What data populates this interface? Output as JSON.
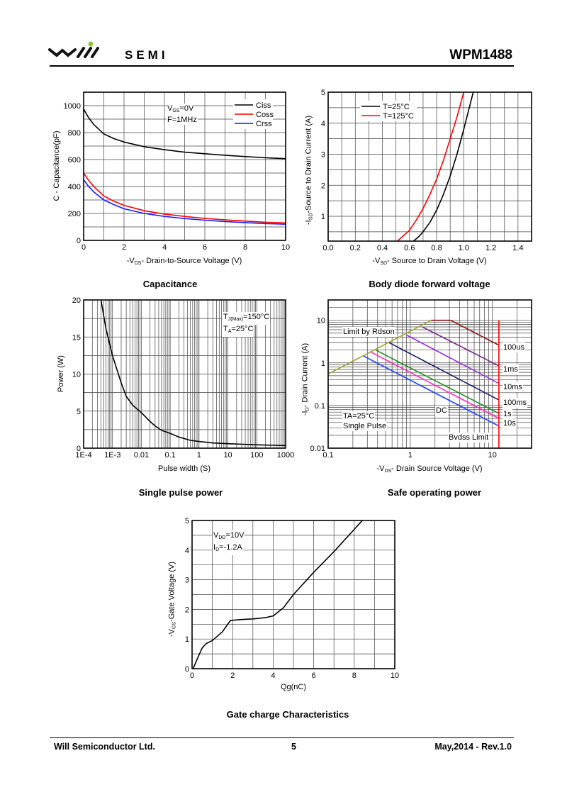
{
  "header": {
    "logo_text": "will",
    "brand": "SEMI",
    "part_number": "WPM1488"
  },
  "footer": {
    "company": "Will Semiconductor Ltd.",
    "page": "5",
    "revision": "May,2014 - Rev.1.0"
  },
  "colors": {
    "black": "#000000",
    "red": "#ff0000",
    "blue": "#1a1aff"
  },
  "chart_data": [
    {
      "type": "line",
      "title": "Capacitance",
      "xlabel": {
        "pre": "-V",
        "sub": "DS",
        "post": "- Drain-to-Source Voltage (V)"
      },
      "ylabel": {
        "pre": "C - Capacitance(pF)",
        "sub": "",
        "post": ""
      },
      "x_axis": {
        "min": 0,
        "max": 10,
        "scale": "linear",
        "ticks": [
          {
            "v": 0,
            "label": "0"
          },
          {
            "v": 2,
            "label": "2"
          },
          {
            "v": 4,
            "label": "4"
          },
          {
            "v": 6,
            "label": "6"
          },
          {
            "v": 8,
            "label": "8"
          },
          {
            "v": 10,
            "label": "10"
          }
        ]
      },
      "y_axis": {
        "min": 0,
        "max": 1100,
        "scale": "linear",
        "ticks": [
          {
            "v": 0,
            "label": "0"
          },
          {
            "v": 200,
            "label": "200"
          },
          {
            "v": 400,
            "label": "400"
          },
          {
            "v": 600,
            "label": "600"
          },
          {
            "v": 800,
            "label": "800"
          },
          {
            "v": 1000,
            "label": "1000"
          }
        ]
      },
      "grid": true,
      "legend_position": "top-right",
      "annotations": [
        {
          "pre": "V",
          "sub": "GS",
          "post": "=0V"
        },
        {
          "pre": "F=1MHz",
          "sub": "",
          "post": ""
        }
      ],
      "series": [
        {
          "name": "Ciss",
          "color": "#000000",
          "points": [
            [
              0,
              975
            ],
            [
              0.25,
              910
            ],
            [
              0.5,
              860
            ],
            [
              1,
              790
            ],
            [
              1.5,
              755
            ],
            [
              2,
              730
            ],
            [
              3,
              695
            ],
            [
              4,
              673
            ],
            [
              5,
              655
            ],
            [
              6,
              643
            ],
            [
              7,
              632
            ],
            [
              8,
              622
            ],
            [
              9,
              613
            ],
            [
              10,
              607
            ]
          ]
        },
        {
          "name": "Coss",
          "color": "#ff0000",
          "points": [
            [
              0,
              500
            ],
            [
              0.25,
              445
            ],
            [
              0.5,
              400
            ],
            [
              1,
              330
            ],
            [
              1.5,
              290
            ],
            [
              2,
              260
            ],
            [
              3,
              220
            ],
            [
              4,
              195
            ],
            [
              5,
              178
            ],
            [
              6,
              163
            ],
            [
              7,
              152
            ],
            [
              8,
              143
            ],
            [
              9,
              135
            ],
            [
              10,
              130
            ]
          ]
        },
        {
          "name": "Crss",
          "color": "#1a1aff",
          "points": [
            [
              0,
              450
            ],
            [
              0.25,
              400
            ],
            [
              0.5,
              360
            ],
            [
              1,
              300
            ],
            [
              1.5,
              265
            ],
            [
              2,
              235
            ],
            [
              3,
              200
            ],
            [
              4,
              178
            ],
            [
              5,
              162
            ],
            [
              6,
              150
            ],
            [
              7,
              140
            ],
            [
              8,
              132
            ],
            [
              9,
              125
            ],
            [
              10,
              120
            ]
          ]
        }
      ]
    },
    {
      "type": "line",
      "title": "Body diode forward voltage",
      "xlabel": {
        "pre": "-V",
        "sub": "SD",
        "post": "- Source to Drain Voltage (V)"
      },
      "ylabel": {
        "pre": "-I",
        "sub": "SD",
        "post": "-Source to Drain Current (A)"
      },
      "x_axis": {
        "min": 0,
        "max": 1.5,
        "scale": "linear",
        "ticks": [
          {
            "v": 0,
            "label": "0.0"
          },
          {
            "v": 0.2,
            "label": "0.2"
          },
          {
            "v": 0.4,
            "label": "0.4"
          },
          {
            "v": 0.6,
            "label": "0.6"
          },
          {
            "v": 0.8,
            "label": "0.8"
          },
          {
            "v": 1.0,
            "label": "1.0"
          },
          {
            "v": 1.2,
            "label": "1.2"
          },
          {
            "v": 1.4,
            "label": "1.4"
          }
        ]
      },
      "y_axis": {
        "min": 0.2,
        "max": 5,
        "scale": "linear",
        "ticks": [
          {
            "v": 1,
            "label": "1"
          },
          {
            "v": 2,
            "label": "2"
          },
          {
            "v": 3,
            "label": "3"
          },
          {
            "v": 4,
            "label": "4"
          },
          {
            "v": 5,
            "label": "5"
          }
        ]
      },
      "grid": true,
      "legend_position": "top-left",
      "annotations": [],
      "series": [
        {
          "name": "T=25°C",
          "color": "#000000",
          "points": [
            [
              0.63,
              0.2
            ],
            [
              0.67,
              0.35
            ],
            [
              0.7,
              0.5
            ],
            [
              0.75,
              0.8
            ],
            [
              0.8,
              1.2
            ],
            [
              0.85,
              1.7
            ],
            [
              0.9,
              2.3
            ],
            [
              0.95,
              3.0
            ],
            [
              1.0,
              3.8
            ],
            [
              1.07,
              5
            ]
          ]
        },
        {
          "name": "T=125°C",
          "color": "#ff0000",
          "points": [
            [
              0.51,
              0.2
            ],
            [
              0.55,
              0.35
            ],
            [
              0.6,
              0.55
            ],
            [
              0.65,
              0.88
            ],
            [
              0.7,
              1.25
            ],
            [
              0.75,
              1.7
            ],
            [
              0.8,
              2.2
            ],
            [
              0.85,
              2.8
            ],
            [
              0.9,
              3.5
            ],
            [
              0.95,
              4.2
            ],
            [
              1.0,
              5
            ]
          ]
        }
      ]
    },
    {
      "type": "line",
      "title": "Single pulse power",
      "xlabel": {
        "pre": "Pulse width (S)",
        "sub": "",
        "post": ""
      },
      "ylabel": {
        "pre": "Power (W)",
        "sub": "",
        "post": ""
      },
      "x_axis": {
        "min": 0.0001,
        "max": 1000,
        "scale": "log",
        "ticks": [
          {
            "v": 0.0001,
            "label": "1E-4"
          },
          {
            "v": 0.001,
            "label": "1E-3"
          },
          {
            "v": 0.01,
            "label": "0.01"
          },
          {
            "v": 0.1,
            "label": "0.1"
          },
          {
            "v": 1,
            "label": "1"
          },
          {
            "v": 10,
            "label": "10"
          },
          {
            "v": 100,
            "label": "100"
          },
          {
            "v": 1000,
            "label": "1000"
          }
        ]
      },
      "y_axis": {
        "min": 0,
        "max": 20,
        "scale": "linear",
        "ticks": [
          {
            "v": 0,
            "label": "0"
          },
          {
            "v": 5,
            "label": "5"
          },
          {
            "v": 10,
            "label": "10"
          },
          {
            "v": 15,
            "label": "15"
          },
          {
            "v": 20,
            "label": "20"
          }
        ]
      },
      "grid": true,
      "annotations": [
        {
          "pre": "T",
          "sub": "J(Max)",
          "post": "=150°C"
        },
        {
          "pre": "T",
          "sub": "A",
          "post": "=25°C"
        }
      ],
      "series": [
        {
          "name": "Power",
          "color": "#000000",
          "points": [
            [
              0.0004,
              20
            ],
            [
              0.0006,
              16
            ],
            [
              0.001,
              12.5
            ],
            [
              0.002,
              8.8
            ],
            [
              0.003,
              7
            ],
            [
              0.005,
              5.8
            ],
            [
              0.01,
              4.8
            ],
            [
              0.02,
              3.6
            ],
            [
              0.03,
              3
            ],
            [
              0.05,
              2.4
            ],
            [
              0.1,
              2
            ],
            [
              0.2,
              1.5
            ],
            [
              0.3,
              1.3
            ],
            [
              0.5,
              1.05
            ],
            [
              1,
              0.9
            ],
            [
              3,
              0.7
            ],
            [
              10,
              0.6
            ],
            [
              100,
              0.45
            ],
            [
              1000,
              0.35
            ]
          ]
        }
      ]
    },
    {
      "type": "line",
      "title": "Safe operating power",
      "xlabel": {
        "pre": "-V",
        "sub": "DS",
        "post": "- Drain Source Voltage (V)"
      },
      "ylabel": {
        "pre": "-I",
        "sub": "D",
        "post": "- Drain Current (A)"
      },
      "x_axis": {
        "min": 0.1,
        "max": 30,
        "scale": "log",
        "ticks": [
          {
            "v": 0.1,
            "label": "0.1"
          },
          {
            "v": 1,
            "label": "1"
          },
          {
            "v": 10,
            "label": "10"
          }
        ]
      },
      "y_axis": {
        "min": 0.01,
        "max": 30,
        "scale": "log",
        "ticks": [
          {
            "v": 0.01,
            "label": "0.01"
          },
          {
            "v": 0.1,
            "label": "0.1"
          },
          {
            "v": 1,
            "label": "1"
          },
          {
            "v": 10,
            "label": "10"
          }
        ]
      },
      "grid": true,
      "annotations": [
        {
          "pre": "Limit by Rdson",
          "sub": "",
          "post": ""
        },
        {
          "pre": "TA=25°C",
          "sub": "",
          "post": ""
        },
        {
          "pre": "Single Pulse",
          "sub": "",
          "post": ""
        },
        {
          "pre": "Bvdss Limit",
          "sub": "",
          "post": ""
        }
      ],
      "series": [
        {
          "name": "Limit by Rdson",
          "color": "#a0a030",
          "points": [
            [
              0.1,
              0.55
            ],
            [
              1.8,
              10
            ]
          ]
        },
        {
          "name": "100us",
          "color": "#8b1010",
          "points": [
            [
              1.8,
              10
            ],
            [
              3.1,
              10
            ],
            [
              12,
              2.6
            ]
          ]
        },
        {
          "name": "1ms",
          "color": "#7a2a8a",
          "points": [
            [
              1.4,
              7
            ],
            [
              12,
              0.85
            ]
          ]
        },
        {
          "name": "10ms",
          "color": "#9a30e0",
          "points": [
            [
              0.9,
              4.5
            ],
            [
              12,
              0.33
            ]
          ]
        },
        {
          "name": "100ms",
          "color": "#1a1a6a",
          "points": [
            [
              0.55,
              3
            ],
            [
              12,
              0.135
            ]
          ]
        },
        {
          "name": "1s",
          "color": "#208a20",
          "points": [
            [
              0.38,
              2
            ],
            [
              12,
              0.065
            ]
          ]
        },
        {
          "name": "10s",
          "color": "#ff30c0",
          "points": [
            [
              0.33,
              1.8
            ],
            [
              12,
              0.05
            ]
          ]
        },
        {
          "name": "DC",
          "color": "#2040ff",
          "points": [
            [
              0.27,
              1.45
            ],
            [
              12,
              0.033
            ]
          ]
        },
        {
          "name": "Bvdss Limit",
          "color": "#ff0000",
          "points": [
            [
              12,
              0.01
            ],
            [
              12,
              10
            ]
          ]
        }
      ]
    },
    {
      "type": "line",
      "title": "Gate charge Characteristics",
      "xlabel": {
        "pre": "Qg(nC)",
        "sub": "",
        "post": ""
      },
      "ylabel": {
        "pre": "-V",
        "sub": "GS",
        "post": "-Gate Voltage (V)"
      },
      "x_axis": {
        "min": 0,
        "max": 10,
        "scale": "linear",
        "ticks": [
          {
            "v": 0,
            "label": "0"
          },
          {
            "v": 2,
            "label": "2"
          },
          {
            "v": 4,
            "label": "4"
          },
          {
            "v": 6,
            "label": "6"
          },
          {
            "v": 8,
            "label": "8"
          },
          {
            "v": 10,
            "label": "10"
          }
        ]
      },
      "y_axis": {
        "min": 0,
        "max": 5,
        "scale": "linear",
        "ticks": [
          {
            "v": 0,
            "label": "0"
          },
          {
            "v": 1,
            "label": "1"
          },
          {
            "v": 2,
            "label": "2"
          },
          {
            "v": 3,
            "label": "3"
          },
          {
            "v": 4,
            "label": "4"
          },
          {
            "v": 5,
            "label": "5"
          }
        ]
      },
      "grid": true,
      "annotations": [
        {
          "pre": "V",
          "sub": "DD",
          "post": "=10V"
        },
        {
          "pre": "I",
          "sub": "D",
          "post": "=-1.2A"
        }
      ],
      "series": [
        {
          "name": "VGS",
          "color": "#000000",
          "points": [
            [
              0.05,
              0
            ],
            [
              0.3,
              0.4
            ],
            [
              0.5,
              0.7
            ],
            [
              0.7,
              0.85
            ],
            [
              1,
              0.95
            ],
            [
              1.5,
              1.25
            ],
            [
              1.9,
              1.63
            ],
            [
              2.5,
              1.66
            ],
            [
              3,
              1.68
            ],
            [
              3.6,
              1.72
            ],
            [
              4,
              1.78
            ],
            [
              4.5,
              2.05
            ],
            [
              5,
              2.5
            ],
            [
              6,
              3.25
            ],
            [
              7,
              3.95
            ],
            [
              8,
              4.7
            ],
            [
              8.4,
              5
            ]
          ]
        }
      ]
    }
  ]
}
